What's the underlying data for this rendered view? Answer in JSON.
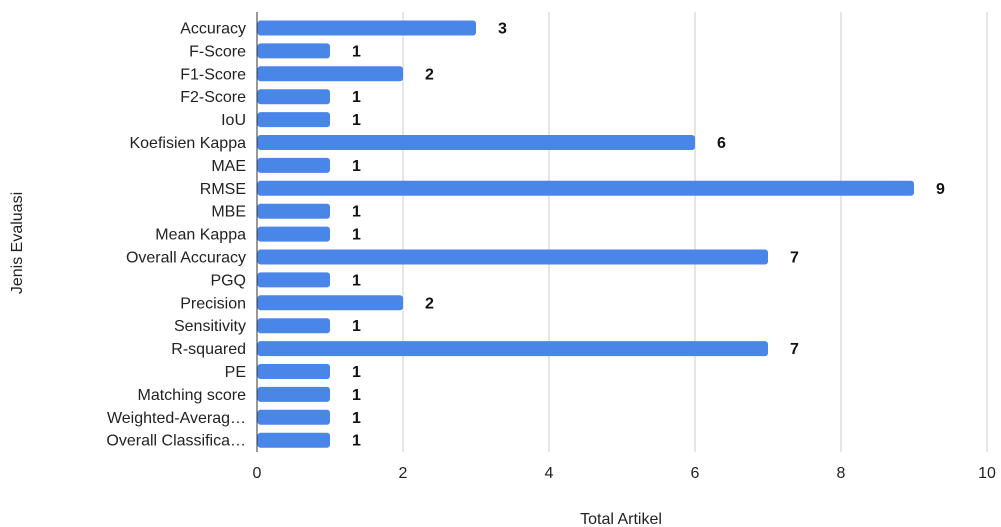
{
  "chart_data": {
    "type": "bar",
    "orientation": "horizontal",
    "categories": [
      "Accuracy",
      "F-Score",
      "F1-Score",
      "F2-Score",
      "IoU",
      "Koefisien Kappa",
      "MAE",
      "RMSE",
      "MBE",
      "Mean Kappa",
      "Overall Accuracy",
      "PGQ",
      "Precision",
      "Sensitivity",
      "R-squared",
      "PE",
      "Matching score",
      "Weighted-Averag…",
      "Overall Classifica…"
    ],
    "values": [
      3,
      1,
      2,
      1,
      1,
      6,
      1,
      9,
      1,
      1,
      7,
      1,
      2,
      1,
      7,
      1,
      1,
      1,
      1
    ],
    "data_labels": [
      "3",
      "1",
      "2",
      "1",
      "1",
      "6",
      "1",
      "9",
      "1",
      "1",
      "7",
      "1",
      "2",
      "1",
      "7",
      "1",
      "1",
      "1",
      "1"
    ],
    "xlabel": "Total Artikel",
    "ylabel": "Jenis Evaluasi",
    "xlim": [
      0,
      10
    ],
    "xticks": [
      0,
      2,
      4,
      6,
      8,
      10
    ],
    "xtick_labels": [
      "0",
      "2",
      "4",
      "6",
      "8",
      "10"
    ],
    "grid": "vertical",
    "legend": "none",
    "bar_color": "#4a86e8"
  }
}
